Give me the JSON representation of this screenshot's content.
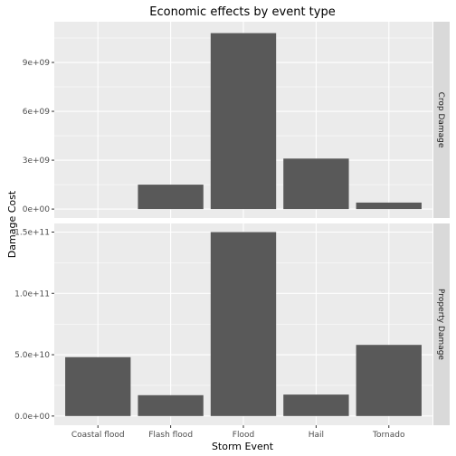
{
  "chart_data": {
    "type": "bar",
    "title": "Economic effects by event type",
    "xlabel": "Storm Event",
    "ylabel": "Damage Cost",
    "categories": [
      "Coastal flood",
      "Flash flood",
      "Flood",
      "Hail",
      "Tornado"
    ],
    "grid": true,
    "legend": "none",
    "facets": [
      {
        "name": "Crop Damage",
        "values": [
          0,
          1500000000,
          10800000000,
          3100000000,
          400000000
        ],
        "ylim": [
          -550000000,
          11500000000
        ],
        "yticks": [
          {
            "value": 0,
            "label": "0e+00"
          },
          {
            "value": 3000000000,
            "label": "3e+09"
          },
          {
            "value": 6000000000,
            "label": "6e+09"
          },
          {
            "value": 9000000000,
            "label": "9e+09"
          }
        ]
      },
      {
        "name": "Property Damage",
        "values": [
          48000000000,
          17000000000,
          150000000000,
          17500000000,
          58000000000
        ],
        "ylim": [
          -7500000000,
          157000000000
        ],
        "yticks": [
          {
            "value": 0,
            "label": "0.0e+00"
          },
          {
            "value": 50000000000,
            "label": "5.0e+10"
          },
          {
            "value": 100000000000,
            "label": "1.0e+11"
          },
          {
            "value": 150000000000,
            "label": "1.5e+11"
          }
        ]
      }
    ]
  },
  "colors": {
    "bar": "#595959",
    "panel_background": "#ebebeb",
    "grid": "#ffffff",
    "strip_background": "#d9d9d9"
  }
}
